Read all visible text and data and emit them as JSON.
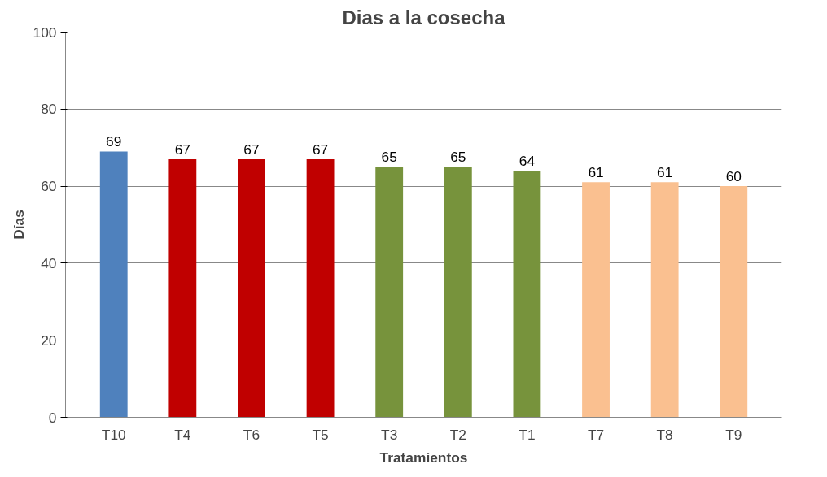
{
  "chart_data": {
    "type": "bar",
    "title": "Dias a la cosecha",
    "xlabel": "Tratamientos",
    "ylabel": "Días",
    "categories": [
      "T10",
      "T4",
      "T6",
      "T5",
      "T3",
      "T2",
      "T1",
      "T7",
      "T8",
      "T9"
    ],
    "values": [
      69,
      67,
      67,
      67,
      65,
      65,
      64,
      61,
      61,
      60
    ],
    "colors": [
      "#4f81bd",
      "#c00000",
      "#c00000",
      "#c00000",
      "#77933c",
      "#77933c",
      "#77933c",
      "#fac090",
      "#fac090",
      "#fac090"
    ],
    "ylim": [
      0,
      100
    ],
    "yticks": [
      0,
      20,
      40,
      60,
      80,
      100
    ],
    "grid": "y",
    "data_labels": true
  }
}
